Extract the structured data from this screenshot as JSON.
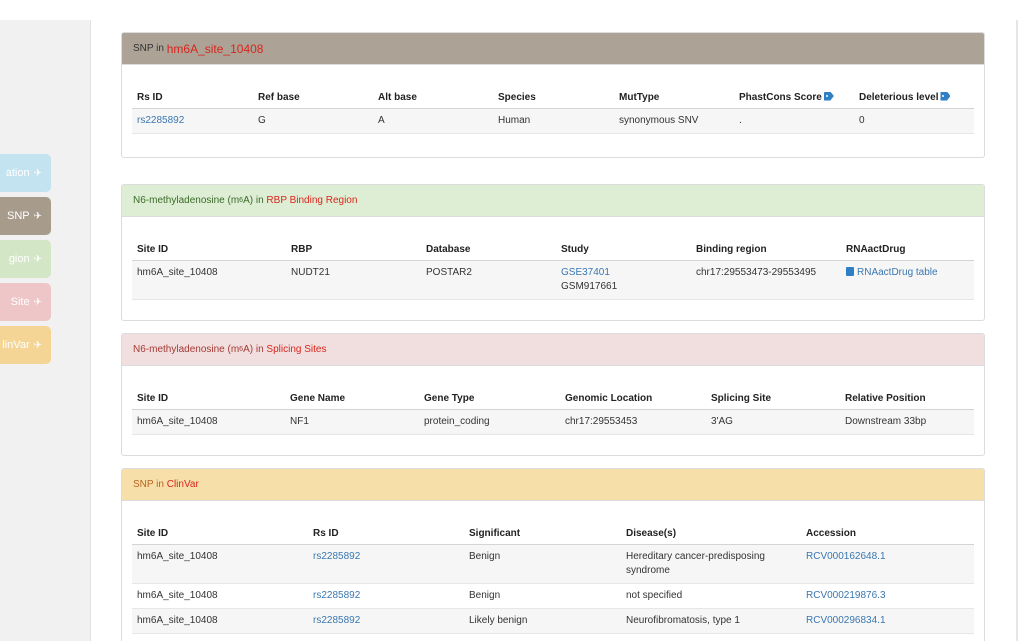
{
  "sidebar": {
    "tabs": [
      {
        "label": "ation",
        "color": "#c3e3f1"
      },
      {
        "label": "SNP",
        "color": "#a79b8c"
      },
      {
        "label": "gion",
        "color": "#d3e6c6"
      },
      {
        "label": "Site",
        "color": "#eec6c8"
      },
      {
        "label": "linVar",
        "color": "#f4d596"
      }
    ],
    "pin_glyph": "✈"
  },
  "snp_panel": {
    "title_prefix": "SNP in ",
    "title_site": "hm6A_site_10408",
    "header_color": "#aca396",
    "columns": [
      "Rs ID",
      "Ref base",
      "Alt base",
      "Species",
      "MutType",
      "PhastCons Score",
      "Deleterious level"
    ],
    "rows": [
      {
        "rs_id": "rs2285892",
        "ref": "G",
        "alt": "A",
        "species": "Human",
        "mut_type": "synonymous SNV",
        "phastcons": ".",
        "deleterious": "0"
      }
    ]
  },
  "rbp_panel": {
    "title_prefix": "N6-methyladenosine (m",
    "title_sup": "6",
    "title_mid": "A) in ",
    "title_hl": "RBP Binding Region",
    "header_color": "#ddeed4",
    "columns": [
      "Site ID",
      "RBP",
      "Database",
      "Study",
      "Binding region",
      "RNAactDrug"
    ],
    "rows": [
      {
        "site_id": "hm6A_site_10408",
        "rbp": "NUDT21",
        "database": "POSTAR2",
        "study_link": "GSE37401",
        "study_sub": "GSM917661",
        "binding_region": "chr17:29553473-29553495",
        "drug_link": "RNAactDrug table"
      }
    ]
  },
  "splicing_panel": {
    "title_prefix": "N6-methyladenosine (m",
    "title_sup": "6",
    "title_mid": "A) in ",
    "title_hl": "Splicing Sites",
    "header_color": "#f1dede",
    "columns": [
      "Site ID",
      "Gene Name",
      "Gene Type",
      "Genomic Location",
      "Splicing Site",
      "Relative Position"
    ],
    "rows": [
      {
        "site_id": "hm6A_site_10408",
        "gene_name": "NF1",
        "gene_type": "protein_coding",
        "location": "chr17:29553453",
        "splicing_site": "3'AG",
        "relative_position": "Downstream 33bp"
      }
    ]
  },
  "clinvar_panel": {
    "title_prefix": "SNP in ",
    "title_hl": "ClinVar",
    "header_color": "#f7dfa9",
    "columns": [
      "Site ID",
      "Rs ID",
      "Significant",
      "Disease(s)",
      "Accession"
    ],
    "rows": [
      {
        "site_id": "hm6A_site_10408",
        "rs_id": "rs2285892",
        "significant": "Benign",
        "disease": "Hereditary cancer-predisposing syndrome",
        "accession": "RCV000162648.1"
      },
      {
        "site_id": "hm6A_site_10408",
        "rs_id": "rs2285892",
        "significant": "Benign",
        "disease": "not specified",
        "accession": "RCV000219876.3"
      },
      {
        "site_id": "hm6A_site_10408",
        "rs_id": "rs2285892",
        "significant": "Likely benign",
        "disease": "Neurofibromatosis, type 1",
        "accession": "RCV000296834.1"
      }
    ]
  }
}
